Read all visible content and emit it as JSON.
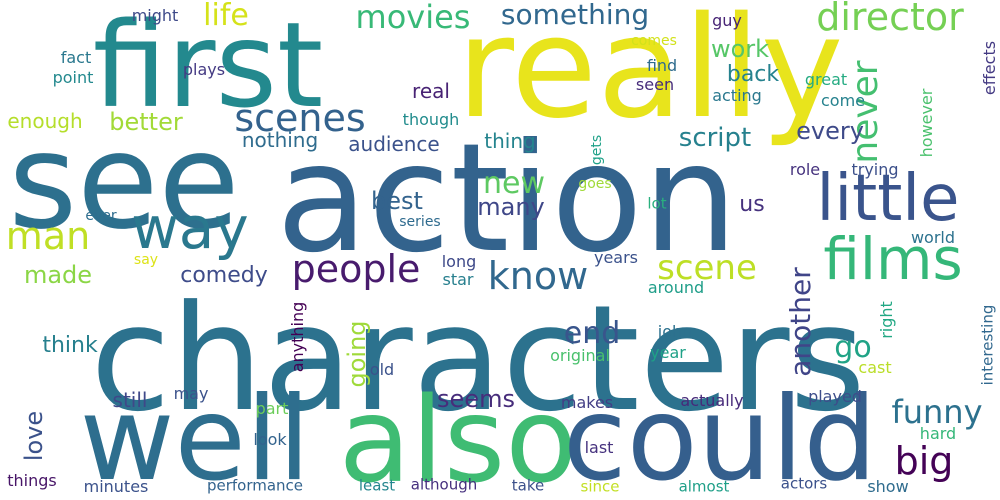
{
  "words": [
    {
      "text": "characters",
      "color": "#2c728e"
    },
    {
      "text": "action",
      "color": "#33638d"
    },
    {
      "text": "really",
      "color": "#e8e41c"
    },
    {
      "text": "see",
      "color": "#2d708e"
    },
    {
      "text": "first",
      "color": "#23898e"
    },
    {
      "text": "also",
      "color": "#3fbc73"
    },
    {
      "text": "could",
      "color": "#355f8d"
    },
    {
      "text": "well",
      "color": "#2e6e8e"
    },
    {
      "text": "little",
      "color": "#3a548c"
    },
    {
      "text": "films",
      "color": "#35b779"
    },
    {
      "text": "way",
      "color": "#2a788e"
    },
    {
      "text": "people",
      "color": "#481b6d"
    },
    {
      "text": "know",
      "color": "#31688e"
    },
    {
      "text": "scene",
      "color": "#bddf26"
    },
    {
      "text": "man",
      "color": "#c0df25"
    },
    {
      "text": "scenes",
      "color": "#33628d"
    },
    {
      "text": "movies",
      "color": "#38b977"
    },
    {
      "text": "director",
      "color": "#75d054"
    },
    {
      "text": "something",
      "color": "#31688e"
    },
    {
      "text": "never",
      "color": "#44bf70"
    },
    {
      "text": "funny",
      "color": "#2c718e"
    },
    {
      "text": "big",
      "color": "#440256"
    },
    {
      "text": "new",
      "color": "#5ec962"
    },
    {
      "text": "life",
      "color": "#d5e21a"
    },
    {
      "text": "end",
      "color": "#39558c"
    },
    {
      "text": "go",
      "color": "#20a386"
    },
    {
      "text": "another",
      "color": "#404588"
    },
    {
      "text": "seems",
      "color": "#472d7b"
    },
    {
      "text": "love",
      "color": "#3b528b"
    },
    {
      "text": "made",
      "color": "#8bd646"
    },
    {
      "text": "script",
      "color": "#26818e"
    },
    {
      "text": "best",
      "color": "#33638d"
    },
    {
      "text": "many",
      "color": "#3f4788"
    },
    {
      "text": "better",
      "color": "#a2da37"
    },
    {
      "text": "every",
      "color": "#3e4a89"
    },
    {
      "text": "work",
      "color": "#56c667"
    },
    {
      "text": "going",
      "color": "#9fda3a"
    },
    {
      "text": "comedy",
      "color": "#3e4c8a"
    },
    {
      "text": "back",
      "color": "#26828e"
    },
    {
      "text": "think",
      "color": "#27808e"
    },
    {
      "text": "us",
      "color": "#46327e"
    },
    {
      "text": "enough",
      "color": "#b5de2b"
    },
    {
      "text": "nothing",
      "color": "#2f6c8e"
    },
    {
      "text": "audience",
      "color": "#3b528b"
    },
    {
      "text": "thing",
      "color": "#25848e"
    },
    {
      "text": "real",
      "color": "#482374"
    },
    {
      "text": "still",
      "color": "#3f4889"
    },
    {
      "text": "however",
      "color": "#4ac16d"
    },
    {
      "text": "effects",
      "color": "#443a83"
    },
    {
      "text": "interesting",
      "color": "#31688e"
    },
    {
      "text": "anything",
      "color": "#440154"
    },
    {
      "text": "great",
      "color": "#25ab82"
    },
    {
      "text": "might",
      "color": "#3e4a89"
    },
    {
      "text": "guy",
      "color": "#482576"
    },
    {
      "text": "comes",
      "color": "#d2e21b"
    },
    {
      "text": "fact",
      "color": "#2a788e"
    },
    {
      "text": "point",
      "color": "#23898e"
    },
    {
      "text": "plays",
      "color": "#443a83"
    },
    {
      "text": "find",
      "color": "#2f6c8e"
    },
    {
      "text": "seen",
      "color": "#472d7b"
    },
    {
      "text": "acting",
      "color": "#2a788e"
    },
    {
      "text": "come",
      "color": "#26828e"
    },
    {
      "text": "though",
      "color": "#228c8d"
    },
    {
      "text": "gets",
      "color": "#1fa188"
    },
    {
      "text": "goes",
      "color": "#a0da39"
    },
    {
      "text": "lot",
      "color": "#2ab07f"
    },
    {
      "text": "role",
      "color": "#46337e"
    },
    {
      "text": "trying",
      "color": "#3c508b"
    },
    {
      "text": "ever",
      "color": "#2e6d8e"
    },
    {
      "text": "series",
      "color": "#2f6b8e"
    },
    {
      "text": "world",
      "color": "#2c728e"
    },
    {
      "text": "say",
      "color": "#dde318"
    },
    {
      "text": "long",
      "color": "#3e4989"
    },
    {
      "text": "star",
      "color": "#277f8e"
    },
    {
      "text": "years",
      "color": "#3b528b"
    },
    {
      "text": "around",
      "color": "#1f9e89"
    },
    {
      "text": "right",
      "color": "#22a884"
    },
    {
      "text": "john",
      "color": "#2c718e"
    },
    {
      "text": "original",
      "color": "#4ac16d"
    },
    {
      "text": "year",
      "color": "#1fa187"
    },
    {
      "text": "cast",
      "color": "#bade28"
    },
    {
      "text": "old",
      "color": "#3b528b"
    },
    {
      "text": "may",
      "color": "#3b528b"
    },
    {
      "text": "part",
      "color": "#6ccd5a"
    },
    {
      "text": "makes",
      "color": "#433e85"
    },
    {
      "text": "actually",
      "color": "#472a7a"
    },
    {
      "text": "played",
      "color": "#3d4d8a"
    },
    {
      "text": "look",
      "color": "#33638d"
    },
    {
      "text": "hard",
      "color": "#35b779"
    },
    {
      "text": "show",
      "color": "#2f6c8e"
    },
    {
      "text": "last",
      "color": "#46327e"
    },
    {
      "text": "things",
      "color": "#481668"
    },
    {
      "text": "minutes",
      "color": "#3b528b"
    },
    {
      "text": "performance",
      "color": "#33638d"
    },
    {
      "text": "least",
      "color": "#24868e"
    },
    {
      "text": "although",
      "color": "#46307e"
    },
    {
      "text": "take",
      "color": "#3c508b"
    },
    {
      "text": "since",
      "color": "#c2df23"
    },
    {
      "text": "almost",
      "color": "#1f9f88"
    },
    {
      "text": "actors",
      "color": "#3b518b"
    }
  ]
}
